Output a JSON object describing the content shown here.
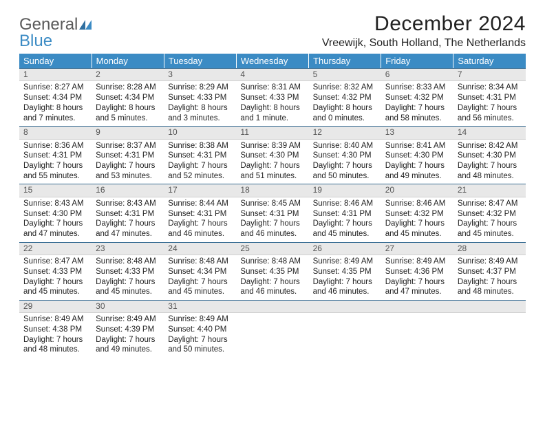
{
  "logo": {
    "text1": "General",
    "text2": "Blue"
  },
  "title": "December 2024",
  "location": "Vreewijk, South Holland, The Netherlands",
  "header_bg": "#3b8bc4",
  "daynum_bg": "#e8e8e8",
  "divider_color": "#3b6f95",
  "weekdays": [
    "Sunday",
    "Monday",
    "Tuesday",
    "Wednesday",
    "Thursday",
    "Friday",
    "Saturday"
  ],
  "weeks": [
    [
      {
        "n": "1",
        "sr": "8:27 AM",
        "ss": "4:34 PM",
        "dl": "8 hours and 7 minutes."
      },
      {
        "n": "2",
        "sr": "8:28 AM",
        "ss": "4:34 PM",
        "dl": "8 hours and 5 minutes."
      },
      {
        "n": "3",
        "sr": "8:29 AM",
        "ss": "4:33 PM",
        "dl": "8 hours and 3 minutes."
      },
      {
        "n": "4",
        "sr": "8:31 AM",
        "ss": "4:33 PM",
        "dl": "8 hours and 1 minute."
      },
      {
        "n": "5",
        "sr": "8:32 AM",
        "ss": "4:32 PM",
        "dl": "8 hours and 0 minutes."
      },
      {
        "n": "6",
        "sr": "8:33 AM",
        "ss": "4:32 PM",
        "dl": "7 hours and 58 minutes."
      },
      {
        "n": "7",
        "sr": "8:34 AM",
        "ss": "4:31 PM",
        "dl": "7 hours and 56 minutes."
      }
    ],
    [
      {
        "n": "8",
        "sr": "8:36 AM",
        "ss": "4:31 PM",
        "dl": "7 hours and 55 minutes."
      },
      {
        "n": "9",
        "sr": "8:37 AM",
        "ss": "4:31 PM",
        "dl": "7 hours and 53 minutes."
      },
      {
        "n": "10",
        "sr": "8:38 AM",
        "ss": "4:31 PM",
        "dl": "7 hours and 52 minutes."
      },
      {
        "n": "11",
        "sr": "8:39 AM",
        "ss": "4:30 PM",
        "dl": "7 hours and 51 minutes."
      },
      {
        "n": "12",
        "sr": "8:40 AM",
        "ss": "4:30 PM",
        "dl": "7 hours and 50 minutes."
      },
      {
        "n": "13",
        "sr": "8:41 AM",
        "ss": "4:30 PM",
        "dl": "7 hours and 49 minutes."
      },
      {
        "n": "14",
        "sr": "8:42 AM",
        "ss": "4:30 PM",
        "dl": "7 hours and 48 minutes."
      }
    ],
    [
      {
        "n": "15",
        "sr": "8:43 AM",
        "ss": "4:30 PM",
        "dl": "7 hours and 47 minutes."
      },
      {
        "n": "16",
        "sr": "8:43 AM",
        "ss": "4:31 PM",
        "dl": "7 hours and 47 minutes."
      },
      {
        "n": "17",
        "sr": "8:44 AM",
        "ss": "4:31 PM",
        "dl": "7 hours and 46 minutes."
      },
      {
        "n": "18",
        "sr": "8:45 AM",
        "ss": "4:31 PM",
        "dl": "7 hours and 46 minutes."
      },
      {
        "n": "19",
        "sr": "8:46 AM",
        "ss": "4:31 PM",
        "dl": "7 hours and 45 minutes."
      },
      {
        "n": "20",
        "sr": "8:46 AM",
        "ss": "4:32 PM",
        "dl": "7 hours and 45 minutes."
      },
      {
        "n": "21",
        "sr": "8:47 AM",
        "ss": "4:32 PM",
        "dl": "7 hours and 45 minutes."
      }
    ],
    [
      {
        "n": "22",
        "sr": "8:47 AM",
        "ss": "4:33 PM",
        "dl": "7 hours and 45 minutes."
      },
      {
        "n": "23",
        "sr": "8:48 AM",
        "ss": "4:33 PM",
        "dl": "7 hours and 45 minutes."
      },
      {
        "n": "24",
        "sr": "8:48 AM",
        "ss": "4:34 PM",
        "dl": "7 hours and 45 minutes."
      },
      {
        "n": "25",
        "sr": "8:48 AM",
        "ss": "4:35 PM",
        "dl": "7 hours and 46 minutes."
      },
      {
        "n": "26",
        "sr": "8:49 AM",
        "ss": "4:35 PM",
        "dl": "7 hours and 46 minutes."
      },
      {
        "n": "27",
        "sr": "8:49 AM",
        "ss": "4:36 PM",
        "dl": "7 hours and 47 minutes."
      },
      {
        "n": "28",
        "sr": "8:49 AM",
        "ss": "4:37 PM",
        "dl": "7 hours and 48 minutes."
      }
    ],
    [
      {
        "n": "29",
        "sr": "8:49 AM",
        "ss": "4:38 PM",
        "dl": "7 hours and 48 minutes."
      },
      {
        "n": "30",
        "sr": "8:49 AM",
        "ss": "4:39 PM",
        "dl": "7 hours and 49 minutes."
      },
      {
        "n": "31",
        "sr": "8:49 AM",
        "ss": "4:40 PM",
        "dl": "7 hours and 50 minutes."
      },
      {
        "n": "",
        "empty": true
      },
      {
        "n": "",
        "empty": true
      },
      {
        "n": "",
        "empty": true
      },
      {
        "n": "",
        "empty": true
      }
    ]
  ],
  "labels": {
    "sunrise": "Sunrise:",
    "sunset": "Sunset:",
    "daylight": "Daylight:"
  }
}
